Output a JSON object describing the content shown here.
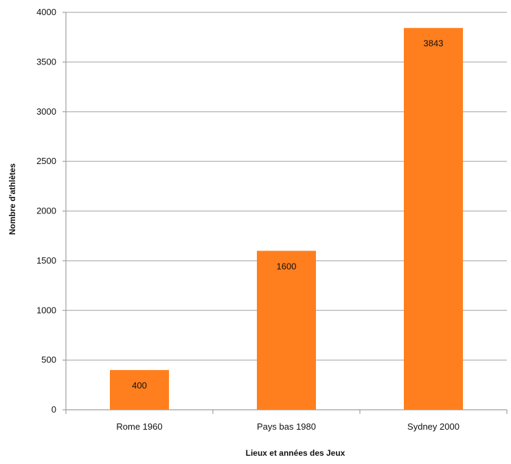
{
  "chart_data": {
    "type": "bar",
    "categories": [
      "Rome 1960",
      "Pays bas 1980",
      "Sydney 2000"
    ],
    "values": [
      400,
      1600,
      3843
    ],
    "data_labels": [
      "400",
      "1600",
      "3843"
    ],
    "xlabel": "Lieux et années des Jeux",
    "ylabel": "Nombre d'athlètes",
    "ylim": [
      0,
      4000
    ],
    "yticks": [
      0,
      500,
      1000,
      1500,
      2000,
      2500,
      3000,
      3500,
      4000
    ],
    "grid": true,
    "legend": "none",
    "bar_color": "#FF7F1E"
  }
}
